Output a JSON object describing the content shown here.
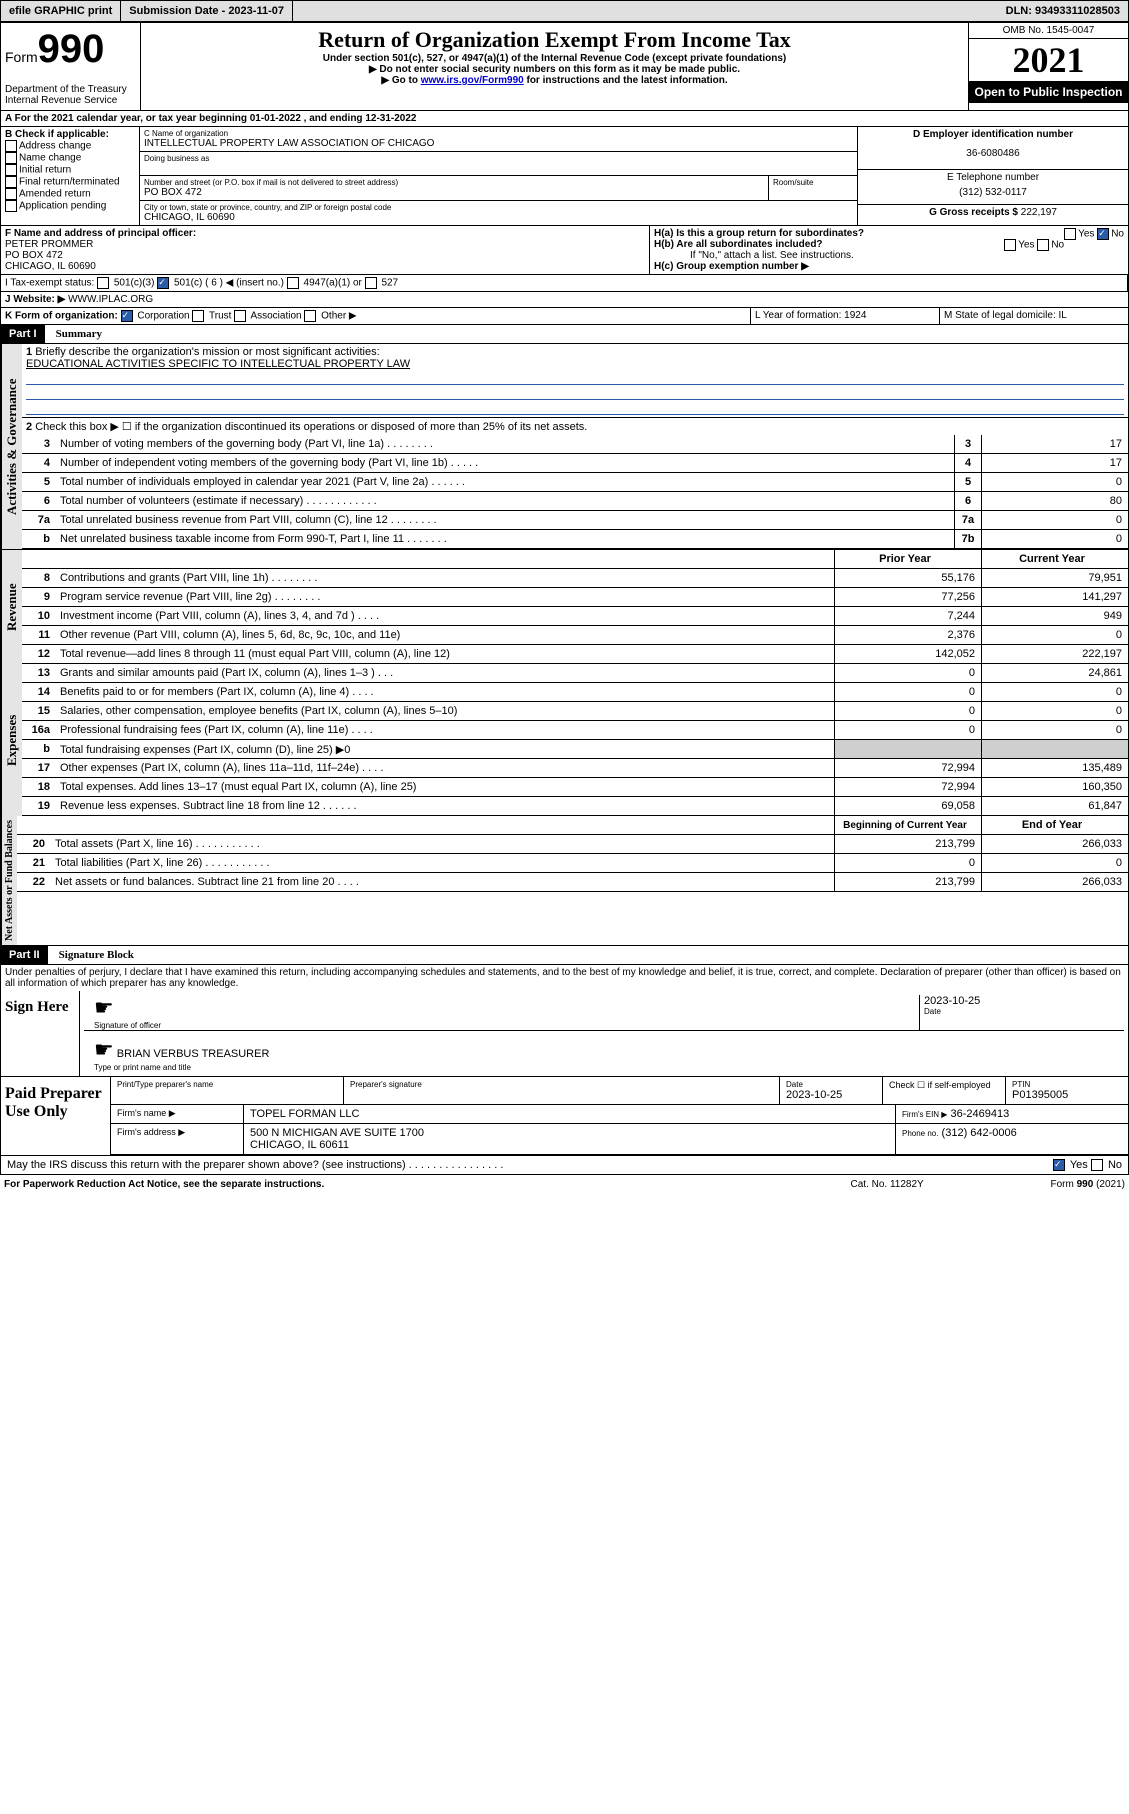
{
  "topbar": {
    "efile": "efile GRAPHIC print",
    "sub_label": "Submission Date - 2023-11-07",
    "dln": "DLN: 93493311028503"
  },
  "header": {
    "form_prefix": "Form",
    "form_num": "990",
    "dept": "Department of the Treasury Internal Revenue Service",
    "title": "Return of Organization Exempt From Income Tax",
    "sub1": "Under section 501(c), 527, or 4947(a)(1) of the Internal Revenue Code (except private foundations)",
    "sub2": "▶ Do not enter social security numbers on this form as it may be made public.",
    "sub3_prefix": "▶ Go to ",
    "sub3_link": "www.irs.gov/Form990",
    "sub3_suffix": " for instructions and the latest information.",
    "omb": "OMB No. 1545-0047",
    "year": "2021",
    "opi": "Open to Public Inspection"
  },
  "line_a": "A For the 2021 calendar year, or tax year beginning 01-01-2022  , and ending 12-31-2022",
  "section_b": {
    "label": "B Check if applicable:",
    "opts": [
      "Address change",
      "Name change",
      "Initial return",
      "Final return/terminated",
      "Amended return",
      "Application pending"
    ]
  },
  "section_c": {
    "name_label": "C Name of organization",
    "name": "INTELLECTUAL PROPERTY LAW ASSOCIATION OF CHICAGO",
    "dba_label": "Doing business as",
    "addr_label": "Number and street (or P.O. box if mail is not delivered to street address)",
    "room_label": "Room/suite",
    "addr": "PO BOX 472",
    "city_label": "City or town, state or province, country, and ZIP or foreign postal code",
    "city": "CHICAGO, IL  60690"
  },
  "section_d": {
    "label": "D Employer identification number",
    "ein": "36-6080486"
  },
  "section_e": {
    "label": "E Telephone number",
    "phone": "(312) 532-0117"
  },
  "section_g": {
    "label": "G Gross receipts $",
    "val": "222,197"
  },
  "section_f": {
    "label": "F Name and address of principal officer:",
    "name": "PETER PROMMER",
    "addr1": "PO BOX 472",
    "addr2": "CHICAGO, IL  60690"
  },
  "section_h": {
    "ha": "H(a)  Is this a group return for subordinates?",
    "hb": "H(b)  Are all subordinates included?",
    "hb_note": "If \"No,\" attach a list. See instructions.",
    "hc": "H(c)  Group exemption number ▶"
  },
  "section_i": {
    "label": "I    Tax-exempt status:",
    "c3": "501(c)(3)",
    "c": "501(c) ( 6 ) ◀ (insert no.)",
    "a1": "4947(a)(1) or",
    "s527": "527"
  },
  "section_j": {
    "label": "J    Website: ▶",
    "val": "WWW.IPLAC.ORG"
  },
  "section_k": {
    "label": "K Form of organization:",
    "corp": "Corporation",
    "trust": "Trust",
    "assoc": "Association",
    "other": "Other ▶"
  },
  "section_l": {
    "label": "L Year of formation: 1924"
  },
  "section_m": {
    "label": "M State of legal domicile: IL"
  },
  "part1": {
    "header": "Part I",
    "title": "Summary",
    "vlab_ag": "Activities & Governance",
    "vlab_rev": "Revenue",
    "vlab_exp": "Expenses",
    "vlab_na": "Net Assets or Fund Balances",
    "l1": "Briefly describe the organization's mission or most significant activities:",
    "l1_val": "EDUCATIONAL ACTIVITIES SPECIFIC TO INTELLECTUAL PROPERTY LAW",
    "l2": "Check this box ▶ ☐  if the organization discontinued its operations or disposed of more than 25% of its net assets.",
    "rows": [
      {
        "n": "3",
        "d": "Number of voting members of the governing body (Part VI, line 1a)   .    .    .    .    .    .    .    .",
        "b": "3",
        "v": "17"
      },
      {
        "n": "4",
        "d": "Number of independent voting members of the governing body (Part VI, line 1b)    .    .    .    .    .",
        "b": "4",
        "v": "17"
      },
      {
        "n": "5",
        "d": "Total number of individuals employed in calendar year 2021 (Part V, line 2a)    .    .    .    .    .    .",
        "b": "5",
        "v": "0"
      },
      {
        "n": "6",
        "d": "Total number of volunteers (estimate if necessary)    .    .    .    .    .    .    .    .    .    .    .    .",
        "b": "6",
        "v": "80"
      },
      {
        "n": "7a",
        "d": "Total unrelated business revenue from Part VIII, column (C), line 12    .    .    .    .    .    .    .    .",
        "b": "7a",
        "v": "0"
      },
      {
        "n": "b",
        "d": "Net unrelated business taxable income from Form 990-T, Part I, line 11    .    .    .    .    .    .    .",
        "b": "7b",
        "v": "0"
      }
    ],
    "col_prior": "Prior Year",
    "col_curr": "Current Year",
    "rev": [
      {
        "n": "8",
        "d": "Contributions and grants (Part VIII, line 1h)    .    .    .    .    .    .    .    .",
        "p": "55,176",
        "c": "79,951"
      },
      {
        "n": "9",
        "d": "Program service revenue (Part VIII, line 2g)    .    .    .    .    .    .    .    .",
        "p": "77,256",
        "c": "141,297"
      },
      {
        "n": "10",
        "d": "Investment income (Part VIII, column (A), lines 3, 4, and 7d )    .    .    .    .",
        "p": "7,244",
        "c": "949"
      },
      {
        "n": "11",
        "d": "Other revenue (Part VIII, column (A), lines 5, 6d, 8c, 9c, 10c, and 11e)",
        "p": "2,376",
        "c": "0"
      },
      {
        "n": "12",
        "d": "Total revenue—add lines 8 through 11 (must equal Part VIII, column (A), line 12)",
        "p": "142,052",
        "c": "222,197"
      }
    ],
    "exp": [
      {
        "n": "13",
        "d": "Grants and similar amounts paid (Part IX, column (A), lines 1–3 )    .    .    .",
        "p": "0",
        "c": "24,861"
      },
      {
        "n": "14",
        "d": "Benefits paid to or for members (Part IX, column (A), line 4)    .    .    .    .",
        "p": "0",
        "c": "0"
      },
      {
        "n": "15",
        "d": "Salaries, other compensation, employee benefits (Part IX, column (A), lines 5–10)",
        "p": "0",
        "c": "0"
      },
      {
        "n": "16a",
        "d": "Professional fundraising fees (Part IX, column (A), line 11e)    .    .    .    .",
        "p": "0",
        "c": "0"
      },
      {
        "n": "b",
        "d": "Total fundraising expenses (Part IX, column (D), line 25) ▶0",
        "p": "",
        "c": "",
        "shaded": true
      },
      {
        "n": "17",
        "d": "Other expenses (Part IX, column (A), lines 11a–11d, 11f–24e)    .    .    .    .",
        "p": "72,994",
        "c": "135,489"
      },
      {
        "n": "18",
        "d": "Total expenses. Add lines 13–17 (must equal Part IX, column (A), line 25)",
        "p": "72,994",
        "c": "160,350"
      },
      {
        "n": "19",
        "d": "Revenue less expenses. Subtract line 18 from line 12    .    .    .    .    .    .",
        "p": "69,058",
        "c": "61,847"
      }
    ],
    "col_begin": "Beginning of Current Year",
    "col_end": "End of Year",
    "na": [
      {
        "n": "20",
        "d": "Total assets (Part X, line 16)    .    .    .    .    .    .    .    .    .    .    .",
        "p": "213,799",
        "c": "266,033"
      },
      {
        "n": "21",
        "d": "Total liabilities (Part X, line 26)    .    .    .    .    .    .    .    .    .    .    .",
        "p": "0",
        "c": "0"
      },
      {
        "n": "22",
        "d": "Net assets or fund balances. Subtract line 21 from line 20    .    .    .    .",
        "p": "213,799",
        "c": "266,033"
      }
    ]
  },
  "part2": {
    "header": "Part II",
    "title": "Signature Block",
    "decl": "Under penalties of perjury, I declare that I have examined this return, including accompanying schedules and statements, and to the best of my knowledge and belief, it is true, correct, and complete. Declaration of preparer (other than officer) is based on all information of which preparer has any knowledge.",
    "sign_here": "Sign Here",
    "sig_of_officer": "Signature of officer",
    "sig_date": "2023-10-25",
    "date_label": "Date",
    "officer_name": "BRIAN VERBUS TREASURER",
    "officer_label": "Type or print name and title",
    "paid": "Paid Preparer Use Only",
    "prep_name_label": "Print/Type preparer's name",
    "prep_sig_label": "Preparer's signature",
    "prep_date_label": "Date",
    "prep_date": "2023-10-25",
    "prep_check": "Check ☐ if self-employed",
    "ptin_label": "PTIN",
    "ptin": "P01395005",
    "firm_name_label": "Firm's name    ▶",
    "firm_name": "TOPEL FORMAN LLC",
    "firm_ein_label": "Firm's EIN ▶",
    "firm_ein": "36-2469413",
    "firm_addr_label": "Firm's address ▶",
    "firm_addr": "500 N MICHIGAN AVE SUITE 1700",
    "firm_city": "CHICAGO, IL  60611",
    "firm_phone_label": "Phone no.",
    "firm_phone": "(312) 642-0006",
    "discuss": "May the IRS discuss this return with the preparer shown above? (see instructions)    .    .    .    .    .    .    .    .    .    .    .    .    .    .    .    .",
    "yes": "Yes",
    "no": "No"
  },
  "footer": {
    "left": "For Paperwork Reduction Act Notice, see the separate instructions.",
    "mid": "Cat. No. 11282Y",
    "right": "Form 990 (2021)"
  }
}
